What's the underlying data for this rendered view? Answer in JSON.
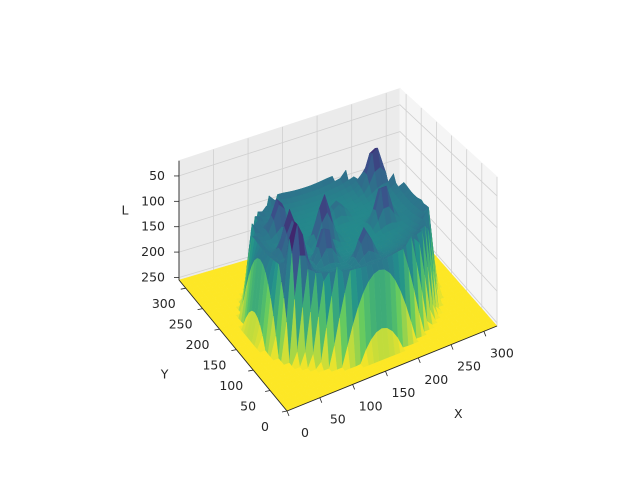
{
  "chart_data": {
    "type": "surface",
    "title": "",
    "xlabel": "X",
    "ylabel": "Y",
    "zlabel": "L",
    "xlim": [
      0,
      320
    ],
    "ylim": [
      0,
      320
    ],
    "zlim": [
      255,
      20
    ],
    "zaxis_inverted": true,
    "x_ticks": [
      "0",
      "50",
      "100",
      "150",
      "200",
      "250",
      "300"
    ],
    "y_ticks": [
      "0",
      "50",
      "100",
      "150",
      "200",
      "250",
      "300"
    ],
    "z_ticks": [
      "50",
      "100",
      "150",
      "200",
      "250"
    ],
    "x_tick_values": [
      0,
      50,
      100,
      150,
      200,
      250,
      300
    ],
    "y_tick_values": [
      0,
      50,
      100,
      150,
      200,
      250,
      300
    ],
    "z_tick_values": [
      50,
      100,
      150,
      200,
      250
    ],
    "colormap": "viridis",
    "colormap_colors": [
      "#440154",
      "#3b528b",
      "#21918c",
      "#5ec962",
      "#fde725"
    ],
    "surface": {
      "grid_size": 320,
      "background_level": 255,
      "ring": {
        "center": [
          160,
          160
        ],
        "radius": 118,
        "outer_edge": 132,
        "plateau_level": 130,
        "rim_level": 95
      },
      "peaks": [
        {
          "x": 65,
          "y": 100,
          "level": 20
        },
        {
          "x": 80,
          "y": 150,
          "level": 40
        },
        {
          "x": 90,
          "y": 205,
          "level": 55
        },
        {
          "x": 115,
          "y": 115,
          "level": 60
        },
        {
          "x": 135,
          "y": 160,
          "level": 45
        },
        {
          "x": 160,
          "y": 85,
          "level": 70
        },
        {
          "x": 175,
          "y": 205,
          "level": 100
        },
        {
          "x": 220,
          "y": 155,
          "level": 55
        },
        {
          "x": 245,
          "y": 235,
          "level": 45
        }
      ]
    },
    "grid": true,
    "legend": "none"
  }
}
